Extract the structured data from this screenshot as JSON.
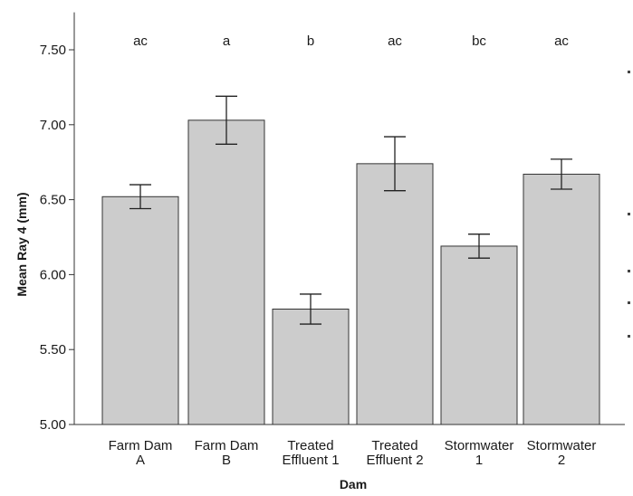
{
  "chart_data": {
    "type": "bar",
    "xlabel": "Dam",
    "ylabel": "Mean Ray 4 (mm)",
    "ylim": [
      5.0,
      7.75
    ],
    "yticks": [
      "5.00",
      "5.50",
      "6.00",
      "6.50",
      "7.00",
      "7.50"
    ],
    "grid": false,
    "bar_color": "#cccccc",
    "categories": [
      [
        "Farm Dam",
        "A"
      ],
      [
        "Farm Dam",
        "B"
      ],
      [
        "Treated",
        "Effluent 1"
      ],
      [
        "Treated",
        "Effluent 2"
      ],
      [
        "Stormwater",
        "1"
      ],
      [
        "Stormwater",
        "2"
      ]
    ],
    "values": [
      6.52,
      7.03,
      5.77,
      6.74,
      6.19,
      6.67
    ],
    "error_low": [
      6.44,
      6.87,
      5.67,
      6.56,
      6.11,
      6.57
    ],
    "error_high": [
      6.6,
      7.19,
      5.87,
      6.92,
      6.27,
      6.77
    ],
    "significance_letters": [
      "ac",
      "a",
      "b",
      "ac",
      "bc",
      "ac"
    ]
  }
}
